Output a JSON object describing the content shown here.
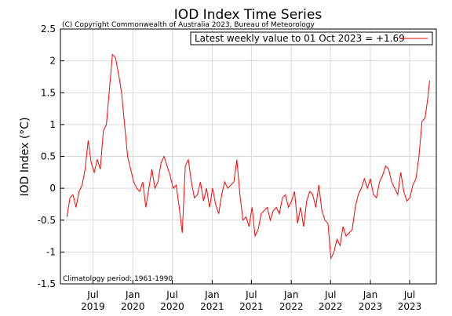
{
  "chart_data": {
    "type": "line",
    "title": "IOD Index Time Series",
    "subtitle": "(C) Copyright Commonwealth of Australia 2023, Bureau of Meteorology",
    "ylabel": "IOD Index (°C)",
    "annotation": "Climatology period: 1961-1990",
    "x": [
      "2019-03-03",
      "2019-03-17",
      "2019-03-31",
      "2019-04-14",
      "2019-04-28",
      "2019-05-12",
      "2019-05-26",
      "2019-06-09",
      "2019-06-23",
      "2019-07-07",
      "2019-07-21",
      "2019-08-04",
      "2019-08-18",
      "2019-09-01",
      "2019-09-15",
      "2019-09-29",
      "2019-10-13",
      "2019-10-27",
      "2019-11-10",
      "2019-11-24",
      "2019-12-08",
      "2019-12-22",
      "2020-01-05",
      "2020-01-19",
      "2020-02-02",
      "2020-02-16",
      "2020-03-01",
      "2020-03-15",
      "2020-03-29",
      "2020-04-12",
      "2020-04-26",
      "2020-05-10",
      "2020-05-24",
      "2020-06-07",
      "2020-06-21",
      "2020-07-05",
      "2020-07-19",
      "2020-08-02",
      "2020-08-16",
      "2020-08-30",
      "2020-09-13",
      "2020-09-27",
      "2020-10-11",
      "2020-10-25",
      "2020-11-08",
      "2020-11-22",
      "2020-12-06",
      "2020-12-20",
      "2021-01-03",
      "2021-01-17",
      "2021-01-31",
      "2021-02-14",
      "2021-02-28",
      "2021-03-14",
      "2021-03-28",
      "2021-04-11",
      "2021-04-25",
      "2021-05-09",
      "2021-05-23",
      "2021-06-06",
      "2021-06-20",
      "2021-07-04",
      "2021-07-18",
      "2021-08-01",
      "2021-08-15",
      "2021-08-29",
      "2021-09-12",
      "2021-09-26",
      "2021-10-10",
      "2021-10-24",
      "2021-11-07",
      "2021-11-21",
      "2021-12-05",
      "2021-12-19",
      "2022-01-02",
      "2022-01-16",
      "2022-01-30",
      "2022-02-13",
      "2022-02-27",
      "2022-03-13",
      "2022-03-27",
      "2022-04-10",
      "2022-04-24",
      "2022-05-08",
      "2022-05-22",
      "2022-06-05",
      "2022-06-19",
      "2022-07-03",
      "2022-07-17",
      "2022-07-31",
      "2022-08-14",
      "2022-08-28",
      "2022-09-11",
      "2022-09-25",
      "2022-10-09",
      "2022-10-23",
      "2022-11-06",
      "2022-11-20",
      "2022-12-04",
      "2022-12-18",
      "2023-01-01",
      "2023-01-15",
      "2023-01-29",
      "2023-02-12",
      "2023-02-26",
      "2023-03-12",
      "2023-03-26",
      "2023-04-09",
      "2023-04-23",
      "2023-05-07",
      "2023-05-21",
      "2023-06-04",
      "2023-06-18",
      "2023-07-02",
      "2023-07-16",
      "2023-07-30",
      "2023-08-13",
      "2023-08-27",
      "2023-09-10",
      "2023-09-24",
      "2023-10-01"
    ],
    "series": [
      {
        "name": "Latest weekly value to 01 Oct 2023 = +1.69",
        "color": "#ff0000",
        "values": [
          -0.45,
          -0.15,
          -0.1,
          -0.3,
          -0.05,
          0.05,
          0.3,
          0.75,
          0.4,
          0.25,
          0.45,
          0.3,
          0.9,
          1.0,
          1.55,
          2.1,
          2.05,
          1.8,
          1.5,
          1.0,
          0.5,
          0.3,
          0.1,
          0.0,
          -0.05,
          0.1,
          -0.3,
          0.0,
          0.3,
          0.0,
          0.1,
          0.4,
          0.5,
          0.35,
          0.2,
          0.0,
          0.05,
          -0.3,
          -0.7,
          0.35,
          0.45,
          0.1,
          -0.15,
          -0.1,
          0.1,
          -0.2,
          0.0,
          -0.3,
          0.0,
          -0.25,
          -0.4,
          -0.1,
          0.1,
          0.0,
          0.05,
          0.1,
          0.45,
          -0.1,
          -0.5,
          -0.45,
          -0.6,
          -0.3,
          -0.75,
          -0.65,
          -0.4,
          -0.35,
          -0.3,
          -0.5,
          -0.35,
          -0.3,
          -0.4,
          -0.15,
          -0.1,
          -0.3,
          -0.2,
          -0.05,
          -0.55,
          -0.3,
          -0.6,
          -0.2,
          -0.05,
          -0.1,
          -0.3,
          0.05,
          -0.35,
          -0.5,
          -0.55,
          -1.1,
          -1.0,
          -0.8,
          -0.9,
          -0.6,
          -0.75,
          -0.7,
          -0.65,
          -0.3,
          -0.1,
          0.0,
          0.15,
          0.0,
          0.15,
          -0.1,
          -0.15,
          0.1,
          0.2,
          0.35,
          0.3,
          0.1,
          0.0,
          -0.1,
          0.25,
          -0.05,
          -0.2,
          -0.15,
          0.05,
          0.15,
          0.5,
          1.05,
          1.1,
          1.45,
          1.69
        ]
      }
    ],
    "xlim": [
      "2019-02-01",
      "2023-11-01"
    ],
    "xticks": [
      {
        "value": "2019-07-01",
        "label": "Jul 2019"
      },
      {
        "value": "2020-01-01",
        "label": "Jan 2020"
      },
      {
        "value": "2020-07-01",
        "label": "Jul 2020"
      },
      {
        "value": "2021-01-01",
        "label": "Jan 2021"
      },
      {
        "value": "2021-07-01",
        "label": "Jul 2021"
      },
      {
        "value": "2022-01-01",
        "label": "Jan 2022"
      },
      {
        "value": "2022-07-01",
        "label": "Jul 2022"
      },
      {
        "value": "2023-01-01",
        "label": "Jan 2023"
      },
      {
        "value": "2023-07-01",
        "label": "Jul 2023"
      }
    ],
    "ylim": [
      -1.5,
      2.5
    ],
    "yticks": [
      -1.5,
      -1,
      -0.5,
      0,
      0.5,
      1,
      1.5,
      2,
      2.5
    ],
    "grid": true,
    "legend": "upper right"
  }
}
